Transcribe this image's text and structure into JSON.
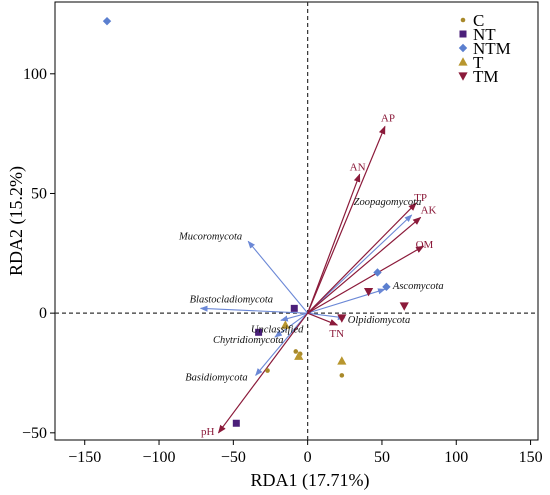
{
  "chart_data": {
    "type": "scatter",
    "xlabel": "RDA1 (17.71%)",
    "ylabel": "RDA2 (15.2%)",
    "xlim": [
      -170,
      155
    ],
    "ylim": [
      -53,
      130
    ],
    "x_ticks": [
      -150,
      -100,
      -50,
      0,
      50,
      100,
      150
    ],
    "y_ticks": [
      -50,
      0,
      50,
      100
    ],
    "x_tick_labels": [
      "−150",
      "−100",
      "−50",
      "0",
      "50",
      "100",
      "150"
    ],
    "y_tick_labels": [
      "−50",
      "0",
      "50",
      "100"
    ],
    "legend_position": "top-right",
    "zero_lines": "dashed",
    "series": [
      {
        "name": "C",
        "marker": "circle",
        "color": "#a8892a",
        "points": [
          [
            -27,
            -24
          ],
          [
            -8,
            -16
          ],
          [
            -5,
            -17
          ],
          [
            23,
            -26
          ]
        ]
      },
      {
        "name": "NT",
        "marker": "square",
        "color": "#4b1f7a",
        "points": [
          [
            -48,
            -46
          ],
          [
            -33,
            -8
          ],
          [
            -9,
            2
          ]
        ]
      },
      {
        "name": "NTM",
        "marker": "diamond",
        "color": "#5b7fcf",
        "points": [
          [
            -135,
            122
          ],
          [
            47,
            17
          ],
          [
            53,
            11
          ]
        ]
      },
      {
        "name": "T",
        "marker": "triangle-up",
        "color": "#b8962e",
        "points": [
          [
            -15,
            -5
          ],
          [
            -6,
            -18
          ],
          [
            23,
            -20
          ]
        ]
      },
      {
        "name": "TM",
        "marker": "triangle-down",
        "color": "#8b1a3a",
        "points": [
          [
            23,
            -2
          ],
          [
            41,
            9
          ],
          [
            65,
            3
          ]
        ]
      }
    ],
    "env_vectors": [
      {
        "name": "AP",
        "x": 52,
        "y": 78
      },
      {
        "name": "AN",
        "x": 35,
        "y": 58
      },
      {
        "name": "TP",
        "x": 73,
        "y": 46
      },
      {
        "name": "AK",
        "x": 76,
        "y": 40
      },
      {
        "name": "OM",
        "x": 78,
        "y": 28
      },
      {
        "name": "TN",
        "x": 20,
        "y": -5
      },
      {
        "name": "pH",
        "x": -60,
        "y": -50
      }
    ],
    "taxa_vectors": [
      {
        "name": "Zoopagomycota",
        "x": 70,
        "y": 41
      },
      {
        "name": "Mucoromycota",
        "x": -40,
        "y": 30
      },
      {
        "name": "Ascomycota",
        "x": 52,
        "y": 10
      },
      {
        "name": "Blastocladiomycota",
        "x": -72,
        "y": 2
      },
      {
        "name": "Unclassified",
        "x": -18,
        "y": -3
      },
      {
        "name": "Olpidiomycota",
        "x": 25,
        "y": -2
      },
      {
        "name": "Chytridiomycota",
        "x": -22,
        "y": -10
      },
      {
        "name": "Basidiomycota",
        "x": -35,
        "y": -26
      }
    ]
  }
}
